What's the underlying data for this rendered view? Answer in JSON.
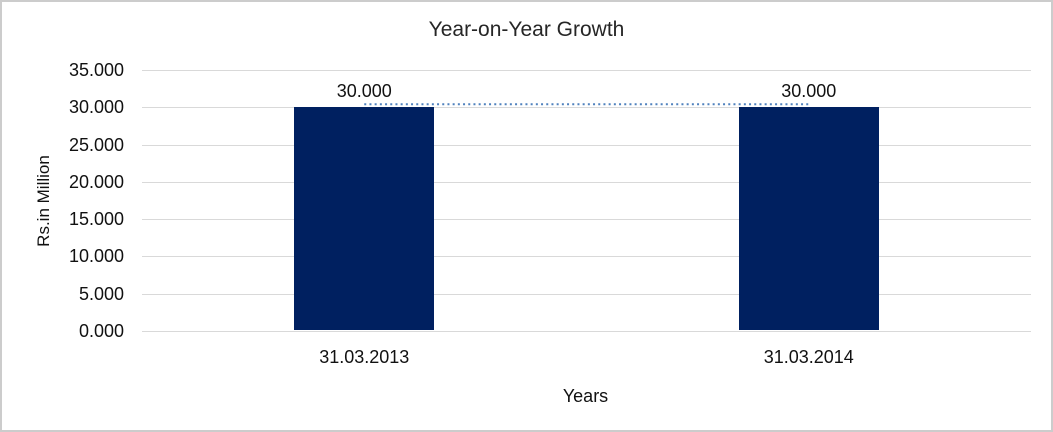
{
  "chart_data": {
    "type": "bar",
    "title": "Year-on-Year Growth",
    "xlabel": "Years",
    "ylabel": "Rs.in Million",
    "categories": [
      "31.03.2013",
      "31.03.2014"
    ],
    "series": [
      {
        "name": "growth-bars",
        "type": "bar",
        "values": [
          30.0,
          30.0
        ],
        "color": "#002060"
      },
      {
        "name": "connector-line",
        "type": "line",
        "style": "dotted",
        "values": [
          30.0,
          30.0
        ],
        "color": "#4F81BD"
      }
    ],
    "data_labels": [
      "30.000",
      "30.000"
    ],
    "yticks": [
      {
        "label": "35.000",
        "value": 35
      },
      {
        "label": "30.000",
        "value": 30
      },
      {
        "label": "25.000",
        "value": 25
      },
      {
        "label": "20.000",
        "value": 20
      },
      {
        "label": "15.000",
        "value": 15
      },
      {
        "label": "10.000",
        "value": 10
      },
      {
        "label": "5.000",
        "value": 5
      },
      {
        "label": "0.000",
        "value": 0
      }
    ],
    "ylim": [
      0,
      35
    ],
    "grid": true,
    "legend": "none"
  },
  "colors": {
    "bar": "#002060",
    "line": "#4F81BD",
    "gridline": "#D9D9D9",
    "frame_border": "#CCCCCC"
  }
}
